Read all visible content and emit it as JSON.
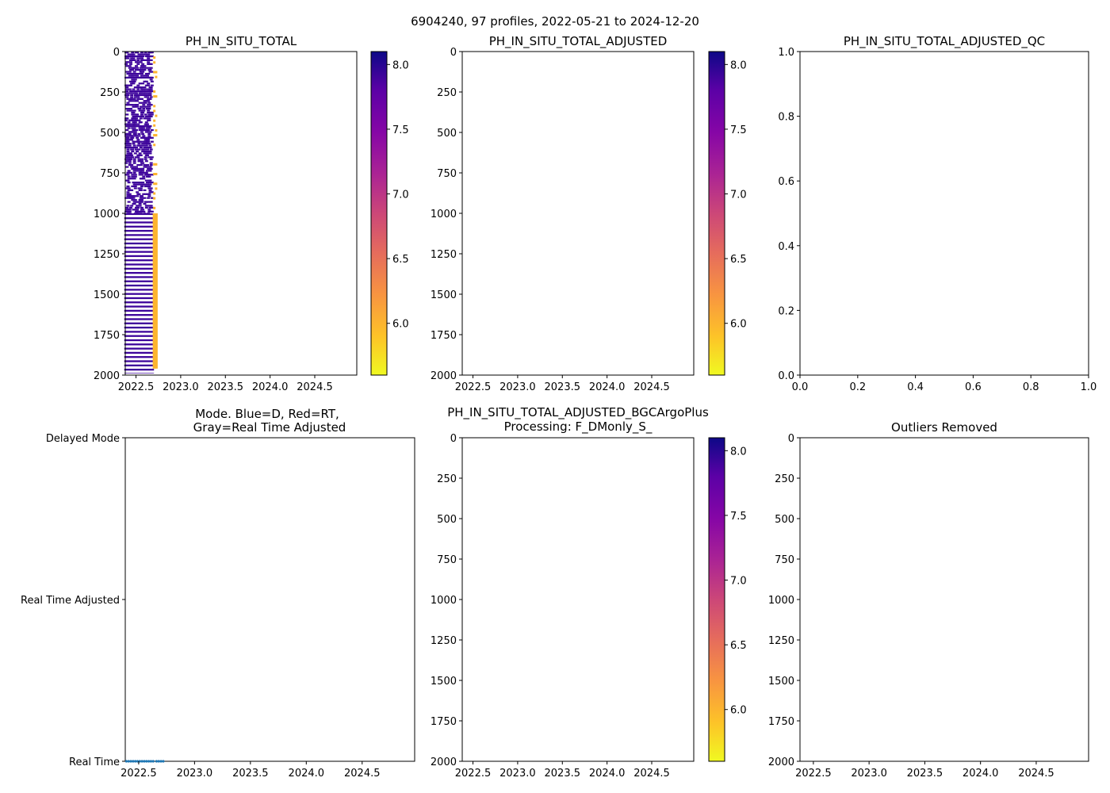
{
  "figure": {
    "suptitle": "6904240, 97 profiles, 2022-05-21 to 2024-12-20"
  },
  "chart_data": [
    {
      "id": "ph_raw",
      "type": "heatmap",
      "title": "PH_IN_SITU_TOTAL",
      "xlim": [
        2022.38,
        2024.97
      ],
      "ylim": [
        2000,
        0
      ],
      "xticks": [
        "2022.5",
        "2023.0",
        "2023.5",
        "2024.0",
        "2024.5"
      ],
      "xtick_values": [
        2022.5,
        2023.0,
        2023.5,
        2024.0,
        2024.5
      ],
      "yticks": [
        "0",
        "250",
        "500",
        "750",
        "1000",
        "1250",
        "1500",
        "1750",
        "2000"
      ],
      "ytick_values": [
        0,
        250,
        500,
        750,
        1000,
        1250,
        1500,
        1750,
        2000
      ],
      "colorbar": {
        "cmap": "plasma_r",
        "range": [
          5.6,
          8.1
        ],
        "ticks": [
          "6.0",
          "6.5",
          "7.0",
          "7.5",
          "8.0"
        ],
        "tick_values": [
          6.0,
          6.5,
          7.0,
          7.5,
          8.0
        ]
      },
      "profiles": {
        "time_start": 2022.39,
        "time_end": 2022.68,
        "count": 29,
        "outlier_times": [
          2022.705,
          2022.725
        ],
        "shallow_value": 7.7,
        "deep_value": 7.75,
        "outlier_value": 6.0,
        "shallow_range": [
          0,
          1000
        ],
        "deep_range": [
          1000,
          1990
        ]
      }
    },
    {
      "id": "ph_adjusted",
      "type": "heatmap",
      "title": "PH_IN_SITU_TOTAL_ADJUSTED",
      "xlim": [
        2022.38,
        2024.97
      ],
      "ylim": [
        2000,
        0
      ],
      "xticks": [
        "2022.5",
        "2023.0",
        "2023.5",
        "2024.0",
        "2024.5"
      ],
      "xtick_values": [
        2022.5,
        2023.0,
        2023.5,
        2024.0,
        2024.5
      ],
      "yticks": [
        "0",
        "250",
        "500",
        "750",
        "1000",
        "1250",
        "1500",
        "1750",
        "2000"
      ],
      "ytick_values": [
        0,
        250,
        500,
        750,
        1000,
        1250,
        1500,
        1750,
        2000
      ],
      "colorbar": {
        "cmap": "plasma_r",
        "range": [
          5.6,
          8.1
        ],
        "ticks": [
          "6.0",
          "6.5",
          "7.0",
          "7.5",
          "8.0"
        ],
        "tick_values": [
          6.0,
          6.5,
          7.0,
          7.5,
          8.0
        ]
      }
    },
    {
      "id": "ph_adjusted_qc",
      "type": "scatter",
      "title": "PH_IN_SITU_TOTAL_ADJUSTED_QC",
      "xlim": [
        0,
        1
      ],
      "ylim": [
        0,
        1
      ],
      "xticks": [
        "0.0",
        "0.2",
        "0.4",
        "0.6",
        "0.8",
        "1.0"
      ],
      "xtick_values": [
        0,
        0.2,
        0.4,
        0.6,
        0.8,
        1.0
      ],
      "yticks": [
        "0.0",
        "0.2",
        "0.4",
        "0.6",
        "0.8",
        "1.0"
      ],
      "ytick_values": [
        0,
        0.2,
        0.4,
        0.6,
        0.8,
        1.0
      ]
    },
    {
      "id": "mode",
      "type": "scatter",
      "title_line1": "Mode. Blue=D, Red=RT,",
      "title_line2": "Gray=Real Time Adjusted",
      "xlim": [
        2022.38,
        2024.97
      ],
      "xticks": [
        "2022.5",
        "2023.0",
        "2023.5",
        "2024.0",
        "2024.5"
      ],
      "xtick_values": [
        2022.5,
        2023.0,
        2023.5,
        2024.0,
        2024.5
      ],
      "ycategories": [
        "Real Time",
        "Real Time Adjusted",
        "Delayed Mode"
      ],
      "points": {
        "category": "Real Time",
        "color": "#1f77b4",
        "x": [
          2022.39,
          2022.41,
          2022.43,
          2022.45,
          2022.47,
          2022.49,
          2022.51,
          2022.53,
          2022.55,
          2022.57,
          2022.59,
          2022.61,
          2022.63,
          2022.66,
          2022.68,
          2022.7,
          2022.72
        ]
      }
    },
    {
      "id": "ph_bgcargoplus",
      "type": "heatmap",
      "title_line1": "PH_IN_SITU_TOTAL_ADJUSTED_BGCArgoPlus",
      "title_line2": "Processing: F_DMonly_S_",
      "xlim": [
        2022.38,
        2024.97
      ],
      "ylim": [
        2000,
        0
      ],
      "xticks": [
        "2022.5",
        "2023.0",
        "2023.5",
        "2024.0",
        "2024.5"
      ],
      "xtick_values": [
        2022.5,
        2023.0,
        2023.5,
        2024.0,
        2024.5
      ],
      "yticks": [
        "0",
        "250",
        "500",
        "750",
        "1000",
        "1250",
        "1500",
        "1750",
        "2000"
      ],
      "ytick_values": [
        0,
        250,
        500,
        750,
        1000,
        1250,
        1500,
        1750,
        2000
      ],
      "colorbar": {
        "cmap": "plasma_r",
        "range": [
          5.6,
          8.1
        ],
        "ticks": [
          "6.0",
          "6.5",
          "7.0",
          "7.5",
          "8.0"
        ],
        "tick_values": [
          6.0,
          6.5,
          7.0,
          7.5,
          8.0
        ]
      }
    },
    {
      "id": "outliers",
      "type": "scatter",
      "title": "Outliers Removed",
      "xlim": [
        2022.38,
        2024.97
      ],
      "ylim": [
        2000,
        0
      ],
      "xticks": [
        "2022.5",
        "2023.0",
        "2023.5",
        "2024.0",
        "2024.5"
      ],
      "xtick_values": [
        2022.5,
        2023.0,
        2023.5,
        2024.0,
        2024.5
      ],
      "yticks": [
        "0",
        "250",
        "500",
        "750",
        "1000",
        "1250",
        "1500",
        "1750",
        "2000"
      ],
      "ytick_values": [
        0,
        250,
        500,
        750,
        1000,
        1250,
        1500,
        1750,
        2000
      ]
    }
  ]
}
